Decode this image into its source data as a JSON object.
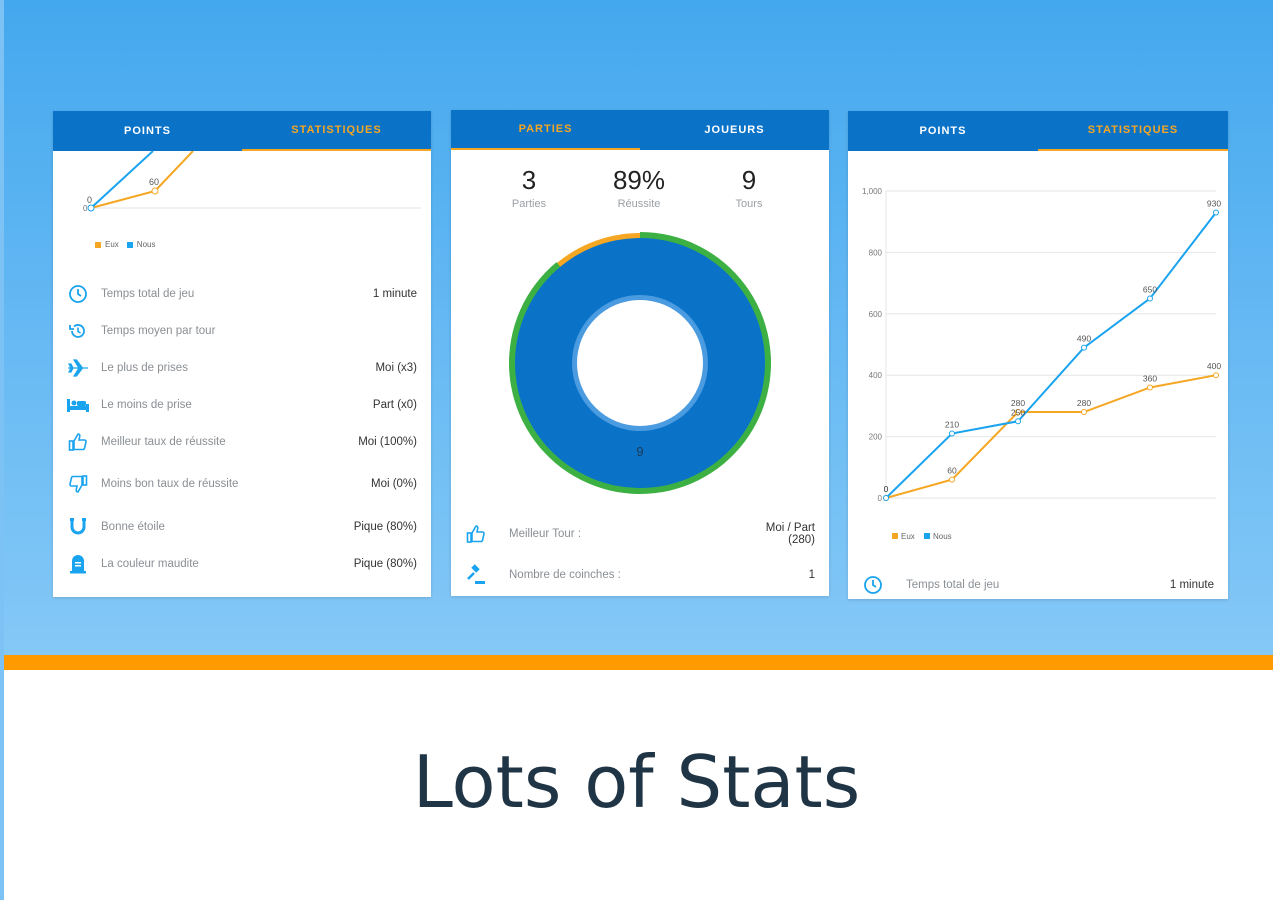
{
  "colors": {
    "accent": "#0a73c8",
    "orange": "#f5a623",
    "blue_line": "#1aa3ee",
    "green": "#3cb043"
  },
  "card1": {
    "tabs": [
      "POINTS",
      "STATISTIQUES"
    ],
    "legend": [
      "Eux",
      "Nous"
    ],
    "chart_points": {
      "eux": "60",
      "zero": "0"
    },
    "axis_zero": "0",
    "stats": [
      {
        "icon": "clock-icon",
        "label": "Temps total de jeu",
        "value": "1 minute"
      },
      {
        "icon": "history-icon",
        "label": "Temps moyen par tour",
        "value": ""
      },
      {
        "icon": "airplane-icon",
        "label": "Le plus de prises",
        "value": "Moi (x3)"
      },
      {
        "icon": "bed-icon",
        "label": "Le moins de prise",
        "value": "Part (x0)"
      },
      {
        "icon": "thumb-up-icon",
        "label": "Meilleur taux de réussite",
        "value": "Moi (100%)"
      },
      {
        "icon": "thumb-down-icon",
        "label": "Moins bon taux de réussite",
        "value": "Moi (0%)"
      },
      {
        "icon": "horseshoe-icon",
        "label": "Bonne étoile",
        "value": "Pique (80%)"
      },
      {
        "icon": "tombstone-icon",
        "label": "La couleur maudite",
        "value": "Pique (80%)"
      }
    ]
  },
  "card2": {
    "tabs": [
      "PARTIES",
      "JOUEURS"
    ],
    "kpis": [
      {
        "value": "3",
        "label": "Parties"
      },
      {
        "value": "89%",
        "label": "Réussite"
      },
      {
        "value": "9",
        "label": "Tours"
      }
    ],
    "donut_label": "9",
    "success_fraction": 0.89,
    "rows": [
      {
        "icon": "thumb-up-icon",
        "label": "Meilleur Tour :",
        "value_line1": "Moi / Part",
        "value_line2": "(280)"
      },
      {
        "icon": "gavel-icon",
        "label": "Nombre de coinches :",
        "value_line1": "1",
        "value_line2": ""
      }
    ]
  },
  "card3": {
    "tabs": [
      "POINTS",
      "STATISTIQUES"
    ],
    "footer_label": "Temps total de jeu",
    "footer_value": "1 minute"
  },
  "chart_data": {
    "type": "line",
    "x": [
      1,
      2,
      3,
      4,
      5,
      6
    ],
    "ylim": [
      0,
      1000
    ],
    "yticks": [
      "0",
      "200",
      "400",
      "600",
      "800",
      "1,000"
    ],
    "series": [
      {
        "name": "Eux",
        "color": "#f5a623",
        "values": [
          0,
          60,
          280,
          280,
          360,
          400
        ]
      },
      {
        "name": "Nous",
        "color": "#1aa3ee",
        "values": [
          0,
          210,
          250,
          490,
          650,
          930
        ]
      }
    ],
    "grid": true,
    "legend": "bottom-left"
  },
  "tagline": "Lots of Stats"
}
